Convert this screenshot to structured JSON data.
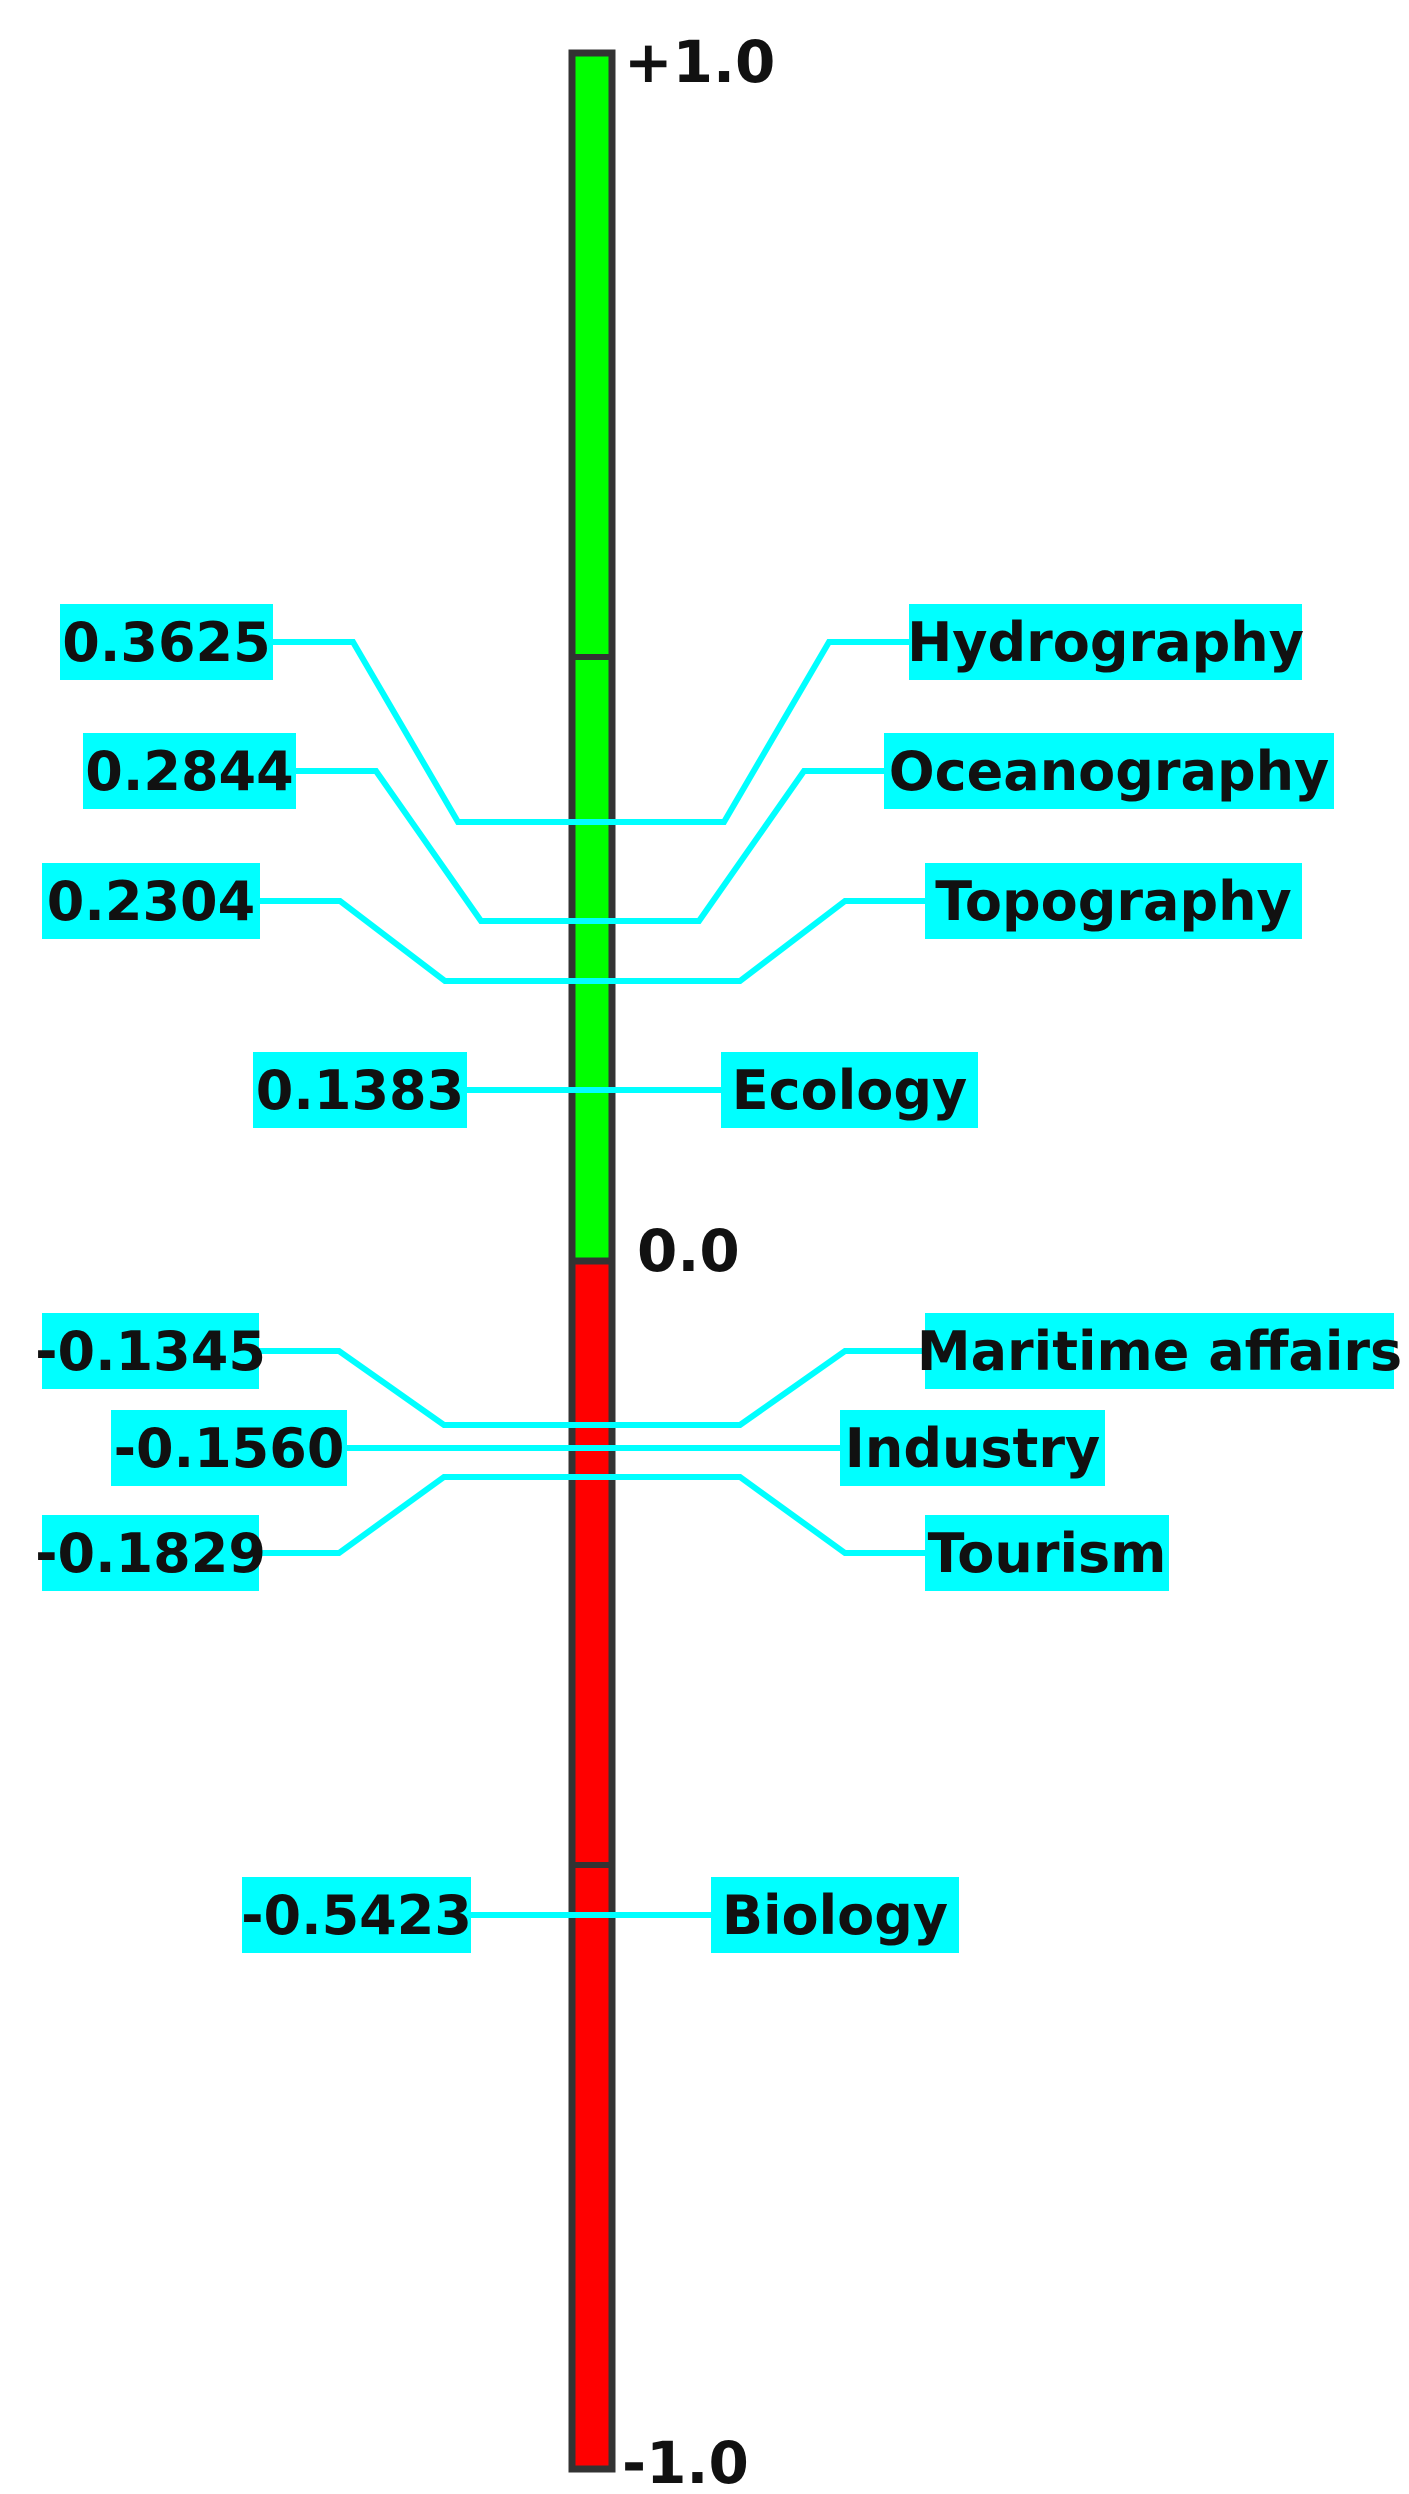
{
  "chart_data": {
    "type": "bar",
    "title": "",
    "ylim": [
      -1.0,
      1.0
    ],
    "axis_labels": {
      "top": "+1.0",
      "middle": "0.0",
      "bottom": "-1.0"
    },
    "colors": {
      "positive": "#00ff00",
      "negative": "#ff0000",
      "label_bg": "#00ffff",
      "leader": "#00ffff",
      "border": "#333333"
    },
    "items": [
      {
        "category": "Hydrography",
        "value": 0.3625,
        "value_label": "0.3625"
      },
      {
        "category": "Oceanography",
        "value": 0.2844,
        "value_label": "0.2844"
      },
      {
        "category": "Topography",
        "value": 0.2304,
        "value_label": "0.2304"
      },
      {
        "category": "Ecology",
        "value": 0.1383,
        "value_label": "0.1383"
      },
      {
        "category": "Maritime affairs",
        "value": -0.1345,
        "value_label": "-0.1345"
      },
      {
        "category": "Industry",
        "value": -0.156,
        "value_label": "-0.1560"
      },
      {
        "category": "Tourism",
        "value": -0.1829,
        "value_label": "-0.1829"
      },
      {
        "category": "Biology",
        "value": -0.5423,
        "value_label": "-0.5423"
      }
    ]
  }
}
